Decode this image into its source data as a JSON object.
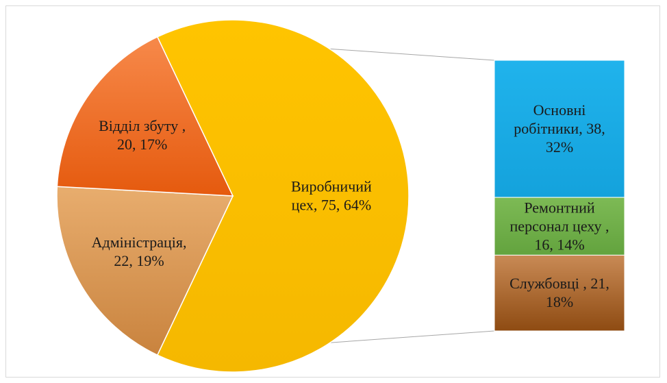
{
  "chart_data": {
    "type": "pie",
    "title": "",
    "main_pie": [
      {
        "name": "Виробничий цех",
        "value": 75,
        "percent": 64,
        "color": "#FFC000",
        "label_lines": [
          "Виробничий",
          "цех, 75, 64%"
        ]
      },
      {
        "name": "Адміністрація",
        "value": 22,
        "percent": 19,
        "color": "#D9964F",
        "label_lines": [
          "Адміністрація,",
          "22, 19%"
        ]
      },
      {
        "name": "Відділ збуту",
        "value": 20,
        "percent": 17,
        "color": "#F26B1D",
        "label_lines": [
          "Відділ збуту ,",
          "20, 17%"
        ]
      }
    ],
    "breakdown_of": "Виробничий цех",
    "breakdown_bar": [
      {
        "name": "Основні робітники",
        "value": 38,
        "percent": 32,
        "color": "#1AABE6",
        "label_lines": [
          "Основні",
          "робітники, 38,",
          "32%"
        ]
      },
      {
        "name": "Ремонтний персонал цеху",
        "value": 16,
        "percent": 14,
        "color": "#70AD47",
        "label_lines": [
          "Ремонтний",
          "персонал цеху ,",
          "16, 14%"
        ]
      },
      {
        "name": "Службовці",
        "value": 21,
        "percent": 18,
        "color": "#A8602A",
        "label_lines": [
          "Службовці , 21,",
          "18%"
        ]
      }
    ],
    "legend": "none"
  }
}
